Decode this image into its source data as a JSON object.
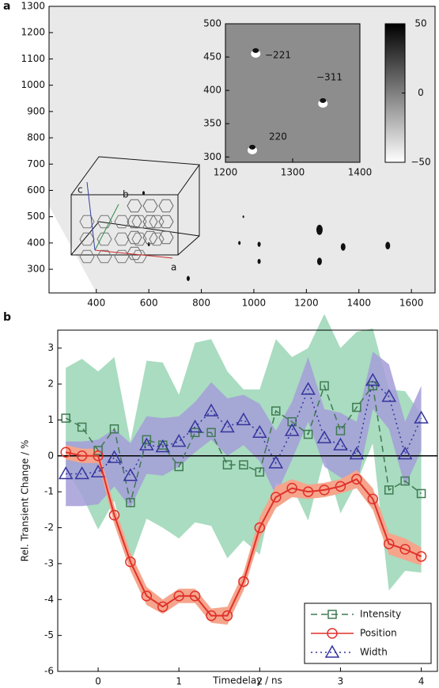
{
  "chart_data": [
    {
      "type": "image",
      "panel": "a",
      "xlim": [
        220,
        1690
      ],
      "ylim": [
        210,
        1300
      ],
      "xticks": [
        400,
        600,
        800,
        1000,
        1200,
        1400,
        1600
      ],
      "yticks": [
        300,
        400,
        500,
        600,
        700,
        800,
        900,
        1000,
        1100,
        1200,
        1300
      ],
      "annotations": [
        {
          "text": "a",
          "color": "#d03030"
        },
        {
          "text": "b",
          "color": "#2e8a4a"
        },
        {
          "text": "c",
          "color": "#3340a0"
        }
      ],
      "inset": {
        "xlim": [
          1200,
          1400
        ],
        "ylim": [
          292,
          500
        ],
        "xticks": [
          1200,
          1300,
          1400
        ],
        "yticks": [
          300,
          350,
          400,
          450,
          500
        ],
        "annotations": [
          "−221",
          "−311",
          "220"
        ]
      },
      "colorbar": {
        "clim": [
          -50,
          50
        ],
        "cticks": [
          {
            "value": -50,
            "label": "−50"
          },
          0,
          50
        ]
      }
    },
    {
      "type": "line",
      "panel": "b",
      "xlabel": "Timedelay / ns",
      "ylabel": "Rel. Transient Change / %",
      "xlim": [
        -0.5,
        4.2
      ],
      "ylim": [
        -6,
        3.5
      ],
      "xticks": [
        0,
        1,
        2,
        3,
        4
      ],
      "yticks": [
        -6,
        -5,
        -4,
        -3,
        -2,
        -1,
        0,
        1,
        2,
        3
      ],
      "zero_line": true,
      "legend": "lower-right",
      "x": [
        -0.4,
        -0.2,
        0,
        0.2,
        0.4,
        0.6,
        0.8,
        1.0,
        1.2,
        1.4,
        1.6,
        1.8,
        2.0,
        2.2,
        2.4,
        2.6,
        2.8,
        3.0,
        3.2,
        3.4,
        3.6,
        3.8,
        4.0
      ],
      "series": [
        {
          "name": "Intensity",
          "color": "#3f7a52",
          "band_color": "#a9dcc0",
          "marker": "square",
          "dash": "8,5",
          "values": [
            1.05,
            0.8,
            0.15,
            0.75,
            -1.3,
            0.45,
            0.3,
            -0.3,
            0.65,
            0.65,
            -0.25,
            -0.25,
            -0.45,
            1.25,
            0.95,
            0.6,
            1.95,
            0.7,
            1.35,
            1.95,
            -0.95,
            -0.7,
            -1.05
          ],
          "errors": [
            1.4,
            1.9,
            2.2,
            2.0,
            1.7,
            2.2,
            2.3,
            2.0,
            2.5,
            2.6,
            2.6,
            2.1,
            2.3,
            2.0,
            1.8,
            2.4,
            2.0,
            2.3,
            2.1,
            1.6,
            2.8,
            2.5,
            2.2
          ]
        },
        {
          "name": "Position",
          "color": "#e0302a",
          "band_color": "#f5a58c",
          "marker": "circle",
          "dash": "",
          "values": [
            0.1,
            0.0,
            0.0,
            -1.65,
            -2.95,
            -3.9,
            -4.2,
            -3.9,
            -3.9,
            -4.45,
            -4.45,
            -3.5,
            -2.0,
            -1.15,
            -0.9,
            -1.0,
            -0.95,
            -0.85,
            -0.65,
            -1.2,
            -2.45,
            -2.6,
            -2.8
          ],
          "errors": [
            0.2,
            0.2,
            0.2,
            0.25,
            0.25,
            0.25,
            0.2,
            0.2,
            0.2,
            0.2,
            0.25,
            0.25,
            0.3,
            0.3,
            0.25,
            0.2,
            0.2,
            0.2,
            0.25,
            0.3,
            0.3,
            0.3,
            0.25
          ]
        },
        {
          "name": "Width",
          "color": "#34359c",
          "band_color": "#a49ed8",
          "marker": "triangle",
          "dash": "2,4",
          "values": [
            -0.5,
            -0.5,
            -0.45,
            -0.05,
            -0.55,
            0.3,
            0.25,
            0.4,
            0.8,
            1.25,
            0.8,
            1.0,
            0.65,
            -0.2,
            0.7,
            1.85,
            0.5,
            0.3,
            0.05,
            2.1,
            1.65,
            0.05,
            1.05
          ],
          "errors": [
            0.9,
            0.9,
            0.9,
            0.8,
            0.9,
            0.8,
            0.8,
            0.7,
            0.7,
            0.8,
            0.8,
            0.7,
            0.8,
            0.9,
            0.8,
            0.9,
            0.8,
            0.9,
            0.9,
            0.8,
            0.9,
            0.9,
            0.9
          ]
        }
      ]
    }
  ]
}
